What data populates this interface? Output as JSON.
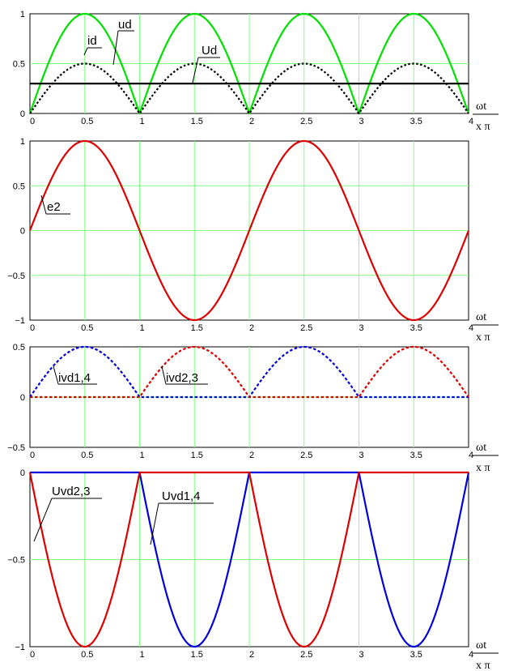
{
  "colors": {
    "grid": "#80ff80",
    "green": "#00e000",
    "red": "#dd0000",
    "blue": "#0000dd",
    "black": "#000000"
  },
  "axis_unit": {
    "top": "ωt",
    "bottom": "x π"
  },
  "chart_data": [
    {
      "type": "line",
      "title": "",
      "x": {
        "min": 0,
        "max": 4,
        "ticks": [
          0,
          0.5,
          1,
          1.5,
          2,
          2.5,
          3,
          3.5,
          4
        ],
        "tick_labels": [
          "0",
          "0.5",
          "1",
          "1.5",
          "2",
          "2.5",
          "3",
          "3.5",
          "4"
        ]
      },
      "ylim": [
        0,
        1
      ],
      "y_ticks": [
        0,
        0.5,
        1
      ],
      "y_tick_labels": [
        "0",
        "0.5",
        "1"
      ],
      "grid": true,
      "series": [
        {
          "name": "ud",
          "function": "abs_sin",
          "amplitude": 1,
          "color": "#00e000",
          "style": "solid"
        },
        {
          "name": "id",
          "function": "abs_sin",
          "amplitude": 0.5,
          "color": "#000000",
          "style": "dotted"
        },
        {
          "name": "Ud",
          "function": "constant",
          "value": 0.3,
          "color": "#000000",
          "style": "solid"
        }
      ]
    },
    {
      "type": "line",
      "title": "",
      "x": {
        "min": 0,
        "max": 4,
        "ticks": [
          0,
          0.5,
          1,
          1.5,
          2,
          2.5,
          3,
          3.5,
          4
        ],
        "tick_labels": [
          "0",
          "0.5",
          "1",
          "1.5",
          "2",
          "2.5",
          "3",
          "3.5",
          "4"
        ]
      },
      "ylim": [
        -1,
        1
      ],
      "y_ticks": [
        -1,
        -0.5,
        0,
        0.5,
        1
      ],
      "y_tick_labels": [
        "−1",
        "−0.5",
        "0",
        "0.5",
        "1"
      ],
      "grid": true,
      "series": [
        {
          "name": "e2",
          "function": "sin",
          "amplitude": 1,
          "color": "#dd0000",
          "style": "solid"
        }
      ]
    },
    {
      "type": "line",
      "title": "",
      "x": {
        "min": 0,
        "max": 4,
        "ticks": [
          0,
          0.5,
          1,
          1.5,
          2,
          2.5,
          3,
          3.5,
          4
        ],
        "tick_labels": [
          "0",
          "0.5",
          "1",
          "1.5",
          "2",
          "2.5",
          "3",
          "3.5",
          "4"
        ]
      },
      "ylim": [
        -0.5,
        0.5
      ],
      "y_ticks": [
        -0.5,
        0,
        0.5
      ],
      "y_tick_labels": [
        "−0.5",
        "0",
        "0.5"
      ],
      "grid": true,
      "series": [
        {
          "name": "ivd1,4",
          "function": "pos_half_sin",
          "amplitude": 0.5,
          "color": "#0000dd",
          "style": "dashed"
        },
        {
          "name": "ivd2,3",
          "function": "neg_half_sin",
          "amplitude": 0.5,
          "color": "#dd0000",
          "style": "dashed"
        }
      ]
    },
    {
      "type": "line",
      "title": "",
      "x": {
        "min": 0,
        "max": 4,
        "ticks": [
          0,
          0.5,
          1,
          1.5,
          2,
          2.5,
          3,
          3.5,
          4
        ],
        "tick_labels": [
          "0",
          "0.5",
          "1",
          "1.5",
          "2",
          "2.5",
          "3",
          "3.5",
          "4"
        ]
      },
      "ylim": [
        -1,
        0
      ],
      "y_ticks": [
        -1,
        -0.5,
        0
      ],
      "y_tick_labels": [
        "−1",
        "−0.5",
        "0"
      ],
      "grid": true,
      "series": [
        {
          "name": "Uvd1,4",
          "function": "neg_of_neg_half",
          "amplitude": 1,
          "color": "#0000dd",
          "style": "solid"
        },
        {
          "name": "Uvd2,3",
          "function": "neg_of_pos_half",
          "amplitude": 1,
          "color": "#dd0000",
          "style": "solid"
        }
      ]
    }
  ]
}
